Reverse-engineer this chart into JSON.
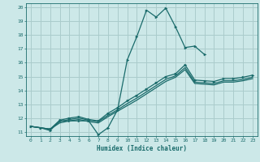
{
  "title": "",
  "xlabel": "Humidex (Indice chaleur)",
  "ylabel": "",
  "xlim": [
    -0.5,
    23.5
  ],
  "ylim": [
    10.7,
    20.3
  ],
  "yticks": [
    11,
    12,
    13,
    14,
    15,
    16,
    17,
    18,
    19,
    20
  ],
  "xticks": [
    0,
    1,
    2,
    3,
    4,
    5,
    6,
    7,
    8,
    9,
    10,
    11,
    12,
    13,
    14,
    15,
    16,
    17,
    18,
    19,
    20,
    21,
    22,
    23
  ],
  "bg_color": "#cce8e8",
  "grid_color": "#aacccc",
  "line_color": "#1a6b6b",
  "lines": [
    {
      "x": [
        0,
        1,
        2,
        3,
        4,
        5,
        6,
        7,
        8,
        9,
        10,
        11,
        12,
        13,
        14,
        15,
        16,
        17,
        18
      ],
      "y": [
        11.4,
        11.3,
        11.1,
        11.8,
        11.8,
        11.8,
        11.8,
        10.8,
        11.3,
        12.6,
        16.2,
        17.9,
        19.8,
        19.3,
        19.95,
        18.6,
        17.1,
        17.2,
        16.6
      ],
      "marker": true
    },
    {
      "x": [
        0,
        1,
        2,
        3,
        4,
        5,
        6,
        7,
        8,
        9,
        10,
        11,
        12,
        13,
        14,
        15,
        16,
        17,
        18,
        19,
        20,
        21,
        22,
        23
      ],
      "y": [
        11.4,
        11.3,
        11.2,
        11.85,
        12.0,
        12.1,
        11.9,
        11.8,
        12.35,
        12.75,
        13.25,
        13.65,
        14.1,
        14.55,
        15.0,
        15.2,
        15.85,
        14.75,
        14.7,
        14.65,
        14.85,
        14.85,
        14.95,
        15.1
      ],
      "marker": true
    },
    {
      "x": [
        0,
        1,
        2,
        3,
        4,
        5,
        6,
        7,
        8,
        9,
        10,
        11,
        12,
        13,
        14,
        15,
        16,
        17,
        18,
        19,
        20,
        21,
        22,
        23
      ],
      "y": [
        11.4,
        11.3,
        11.2,
        11.75,
        11.9,
        12.0,
        11.85,
        11.75,
        12.2,
        12.6,
        13.05,
        13.45,
        13.9,
        14.35,
        14.8,
        15.05,
        15.65,
        14.6,
        14.55,
        14.5,
        14.7,
        14.7,
        14.8,
        14.95
      ],
      "marker": false
    },
    {
      "x": [
        0,
        1,
        2,
        3,
        4,
        5,
        6,
        7,
        8,
        9,
        10,
        11,
        12,
        13,
        14,
        15,
        16,
        17,
        18,
        19,
        20,
        21,
        22,
        23
      ],
      "y": [
        11.4,
        11.3,
        11.2,
        11.65,
        11.8,
        11.9,
        11.75,
        11.65,
        12.1,
        12.5,
        12.9,
        13.3,
        13.75,
        14.2,
        14.65,
        14.95,
        15.5,
        14.5,
        14.45,
        14.4,
        14.6,
        14.6,
        14.7,
        14.85
      ],
      "marker": false
    }
  ]
}
